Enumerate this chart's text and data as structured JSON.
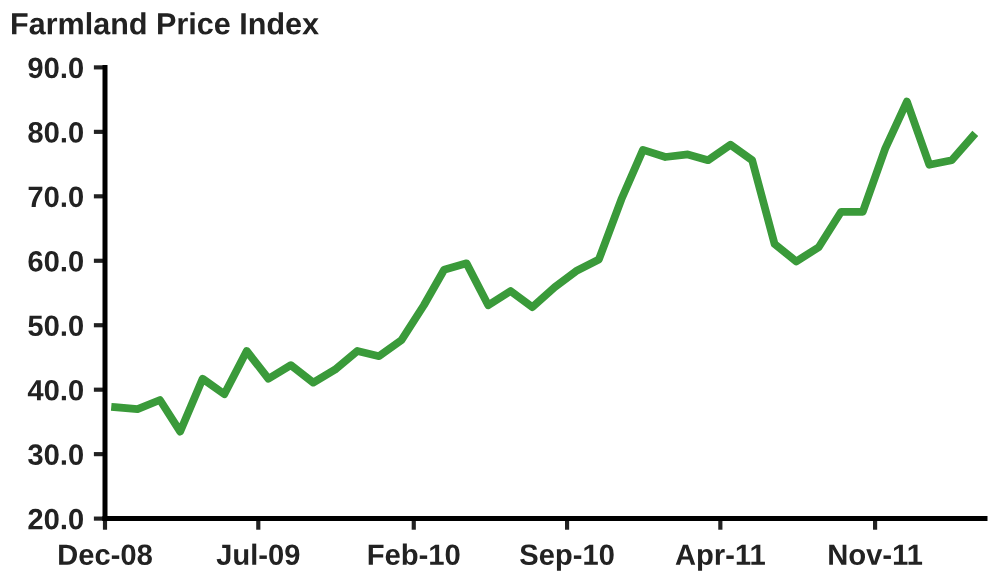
{
  "chart_data": {
    "type": "line",
    "title": "Farmland Price Index",
    "x": [
      "2008-12-15",
      "2009-01-15",
      "2009-02-15",
      "2009-03-15",
      "2009-04-15",
      "2009-05-15",
      "2009-06-15",
      "2009-07-15",
      "2009-08-15",
      "2009-09-15",
      "2009-10-15",
      "2009-11-15",
      "2009-12-15",
      "2010-01-15",
      "2010-02-15",
      "2010-03-15",
      "2010-04-15",
      "2010-05-15",
      "2010-06-15",
      "2010-07-15",
      "2010-08-15",
      "2010-09-15",
      "2010-10-15",
      "2010-11-15",
      "2010-12-15",
      "2011-01-15",
      "2011-02-15",
      "2011-03-15",
      "2011-04-15",
      "2011-05-15",
      "2011-06-15",
      "2011-07-15",
      "2011-08-15",
      "2011-09-15",
      "2011-10-15",
      "2011-11-15",
      "2011-12-15",
      "2012-01-15",
      "2012-02-15",
      "2012-03-15"
    ],
    "series": [
      {
        "color": "#3a9a3a",
        "values": [
          37.3,
          37.0,
          38.4,
          33.5,
          41.7,
          39.3,
          46.0,
          41.7,
          43.8,
          41.1,
          43.1,
          46.0,
          45.2,
          47.7,
          53.1,
          58.6,
          59.6,
          53.1,
          55.3,
          52.8,
          55.9,
          58.5,
          60.2,
          69.5,
          77.2,
          76.1,
          76.5,
          75.6,
          78.0,
          75.6,
          62.6,
          59.9,
          62.1,
          67.6,
          67.6,
          77.4,
          84.7,
          74.9,
          75.6,
          79.3
        ]
      }
    ],
    "xlim": [
      "2008-12-01",
      "2012-04-01"
    ],
    "xticks": [
      {
        "value": "2008-12-01",
        "label": "Dec-08"
      },
      {
        "value": "2009-07-01",
        "label": "Jul-09"
      },
      {
        "value": "2010-02-01",
        "label": "Feb-10"
      },
      {
        "value": "2010-09-01",
        "label": "Sep-10"
      },
      {
        "value": "2011-04-01",
        "label": "Apr-11"
      },
      {
        "value": "2011-11-01",
        "label": "Nov-11"
      }
    ],
    "ylim": [
      20,
      90
    ],
    "yticks": [
      {
        "value": 20,
        "label": "20.0"
      },
      {
        "value": 30,
        "label": "30.0"
      },
      {
        "value": 40,
        "label": "40.0"
      },
      {
        "value": 50,
        "label": "50.0"
      },
      {
        "value": 60,
        "label": "60.0"
      },
      {
        "value": 70,
        "label": "70.0"
      },
      {
        "value": 80,
        "label": "80.0"
      },
      {
        "value": 90,
        "label": "90.0"
      }
    ],
    "grid": false,
    "legend": false,
    "marker": "none",
    "line_style": "solid"
  }
}
